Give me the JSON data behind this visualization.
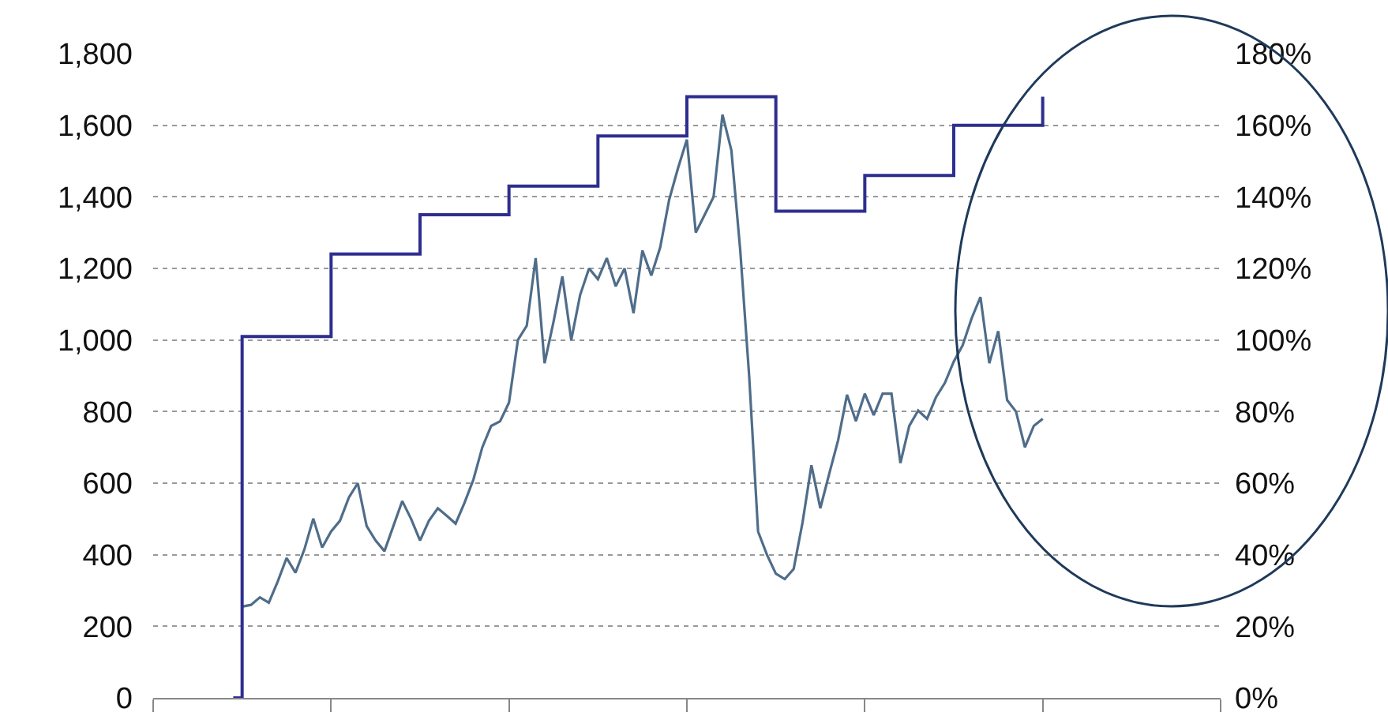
{
  "chart_data": {
    "type": "line",
    "categories": [
      null,
      null,
      null,
      null,
      null,
      null,
      null,
      null,
      null,
      null,
      null,
      null,
      null,
      null,
      null,
      null,
      null,
      null,
      null,
      null,
      null,
      null,
      null,
      null,
      null,
      null,
      null,
      null,
      null,
      null,
      null,
      null,
      null,
      null,
      null,
      null,
      null,
      null,
      null,
      null,
      null,
      null,
      null,
      null,
      null,
      null,
      null,
      null,
      null,
      null,
      null,
      null,
      null,
      null,
      null,
      null,
      null,
      null,
      null,
      null,
      null,
      null,
      null,
      null,
      null,
      null,
      null,
      null,
      null,
      null,
      null,
      null,
      null,
      null,
      null,
      null,
      null,
      null,
      null,
      null,
      null,
      null,
      null,
      null,
      null,
      null,
      null,
      null,
      null,
      null,
      null,
      null
    ],
    "ylim": [
      0,
      1800
    ],
    "yticks": [
      {
        "value": 0,
        "label": "0"
      },
      {
        "value": 200,
        "label": "200"
      },
      {
        "value": 400,
        "label": "400"
      },
      {
        "value": 600,
        "label": "600"
      },
      {
        "value": 800,
        "label": "800"
      },
      {
        "value": 1000,
        "label": "1,000"
      },
      {
        "value": 1200,
        "label": "1,200"
      },
      {
        "value": 1400,
        "label": "1,400"
      },
      {
        "value": 1600,
        "label": "1,600"
      },
      {
        "value": 1800,
        "label": "1,800"
      }
    ],
    "y2lim": [
      0,
      180
    ],
    "y2ticks": [
      {
        "value": 0,
        "label": "0%"
      },
      {
        "value": 20,
        "label": "20%"
      },
      {
        "value": 40,
        "label": "40%"
      },
      {
        "value": 60,
        "label": "60%"
      },
      {
        "value": 80,
        "label": "80%"
      },
      {
        "value": 100,
        "label": "100%"
      },
      {
        "value": 120,
        "label": "120%"
      },
      {
        "value": 140,
        "label": "140%"
      },
      {
        "value": 160,
        "label": "160%"
      },
      {
        "value": 180,
        "label": "180%"
      }
    ],
    "grid": "y",
    "tick_labels": "y",
    "marker": "none",
    "line_style": "solid",
    "series": [
      {
        "color": "#4f6d8a",
        "values": [
          null,
          255,
          260,
          281,
          266,
          325,
          391,
          350,
          415,
          501,
          420,
          465,
          495,
          560,
          600,
          480,
          440,
          410,
          480,
          550,
          500,
          440,
          495,
          530,
          509,
          487,
          545,
          610,
          700,
          760,
          773,
          825,
          1000,
          1040,
          1229,
          935,
          1050,
          1178,
          1000,
          1126,
          1200,
          1170,
          1229,
          1150,
          1200,
          1075,
          1250,
          1180,
          1259,
          1391,
          1480,
          1560,
          1300,
          1350,
          1400,
          1630,
          1530,
          1250,
          900,
          465,
          400,
          347,
          332,
          360,
          490,
          650,
          530,
          626,
          720,
          847,
          773,
          850,
          790,
          850,
          850,
          656,
          760,
          803,
          780,
          840,
          880,
          940,
          985,
          1060,
          1120,
          935,
          1025,
          832,
          800,
          700,
          760,
          780
        ]
      },
      {
        "type": "step",
        "axis": "y2",
        "color": "#2e2e8f",
        "values": [
          0,
          101,
          101,
          101,
          101,
          101,
          101,
          101,
          101,
          101,
          101,
          124,
          124,
          124,
          124,
          124,
          124,
          124,
          124,
          124,
          124,
          135,
          135,
          135,
          135,
          135,
          135,
          135,
          135,
          135,
          135,
          143,
          143,
          143,
          143,
          143,
          143,
          143,
          143,
          143,
          143,
          157,
          157,
          157,
          157,
          157,
          157,
          157,
          157,
          157,
          157,
          168,
          168,
          168,
          168,
          168,
          168,
          168,
          168,
          168,
          168,
          136,
          136,
          136,
          136,
          136,
          136,
          136,
          136,
          136,
          136,
          146,
          146,
          146,
          146,
          146,
          146,
          146,
          146,
          146,
          146,
          160,
          160,
          160,
          160,
          160,
          160,
          160,
          160,
          160,
          160,
          168
        ]
      }
    ]
  }
}
